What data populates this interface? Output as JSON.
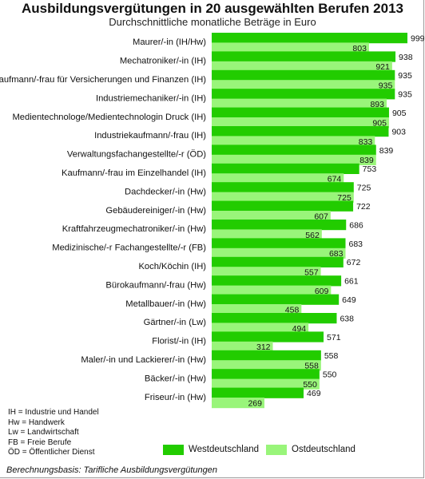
{
  "title": "Ausbildungsvergütungen in 20 ausgewählten Berufen 2013",
  "subtitle": "Durchschnittliche monatliche Beträge in Euro",
  "colors": {
    "west": "#22cc00",
    "ost": "#99f57a"
  },
  "chart_data": {
    "type": "bar",
    "orientation": "horizontal",
    "title": "Ausbildungsvergütungen in 20 ausgewählten Berufen 2013",
    "subtitle": "Durchschnittliche monatliche Beträge in Euro",
    "categories": [
      "Maurer/-in (IH/Hw)",
      "Mechatroniker/-in (IH)",
      "Kaufmann/-frau für Versicherungen und Finanzen (IH)",
      "Industriemechaniker/-in (IH)",
      "Medientechnologe/Medientechnologin Druck (IH)",
      "Industriekaufmann/-frau (IH)",
      "Verwaltungsfachangestellte/-r (ÖD)",
      "Kaufmann/-frau im Einzelhandel (IH)",
      "Dachdecker/-in (Hw)",
      "Gebäudereiniger/-in (Hw)",
      "Kraftfahrzeugmechatroniker/-in (Hw)",
      "Medizinische/-r Fachangestellte/-r (FB)",
      "Koch/Köchin (IH)",
      "Bürokaufmann/-frau (Hw)",
      "Metallbauer/-in (Hw)",
      "Gärtner/-in (Lw)",
      "Florist/-in (IH)",
      "Maler/-in und Lackierer/-in (Hw)",
      "Bäcker/-in (Hw)",
      "Friseur/-in (Hw)"
    ],
    "series": [
      {
        "name": "Westdeutschland",
        "values": [
          999,
          938,
          935,
          935,
          905,
          903,
          839,
          753,
          725,
          722,
          686,
          683,
          672,
          661,
          649,
          638,
          571,
          558,
          550,
          469
        ]
      },
      {
        "name": "Ostdeutschland",
        "values": [
          803,
          921,
          935,
          893,
          905,
          833,
          839,
          674,
          725,
          607,
          562,
          683,
          557,
          609,
          458,
          494,
          312,
          558,
          550,
          269
        ]
      }
    ],
    "xlim": [
      0,
      999
    ],
    "legend": "bottom-right",
    "grid": false
  },
  "legend": {
    "west_label": "Westdeutschland",
    "ost_label": "Ostdeutschland"
  },
  "abbreviations": [
    "IH = Industrie und Handel",
    "Hw = Handwerk",
    "Lw = Landwirtschaft",
    "FB = Freie Berufe",
    "ÖD = Öffentlicher Dienst"
  ],
  "source": "Berechnungsbasis: Tarifliche Ausbildungsvergütungen"
}
